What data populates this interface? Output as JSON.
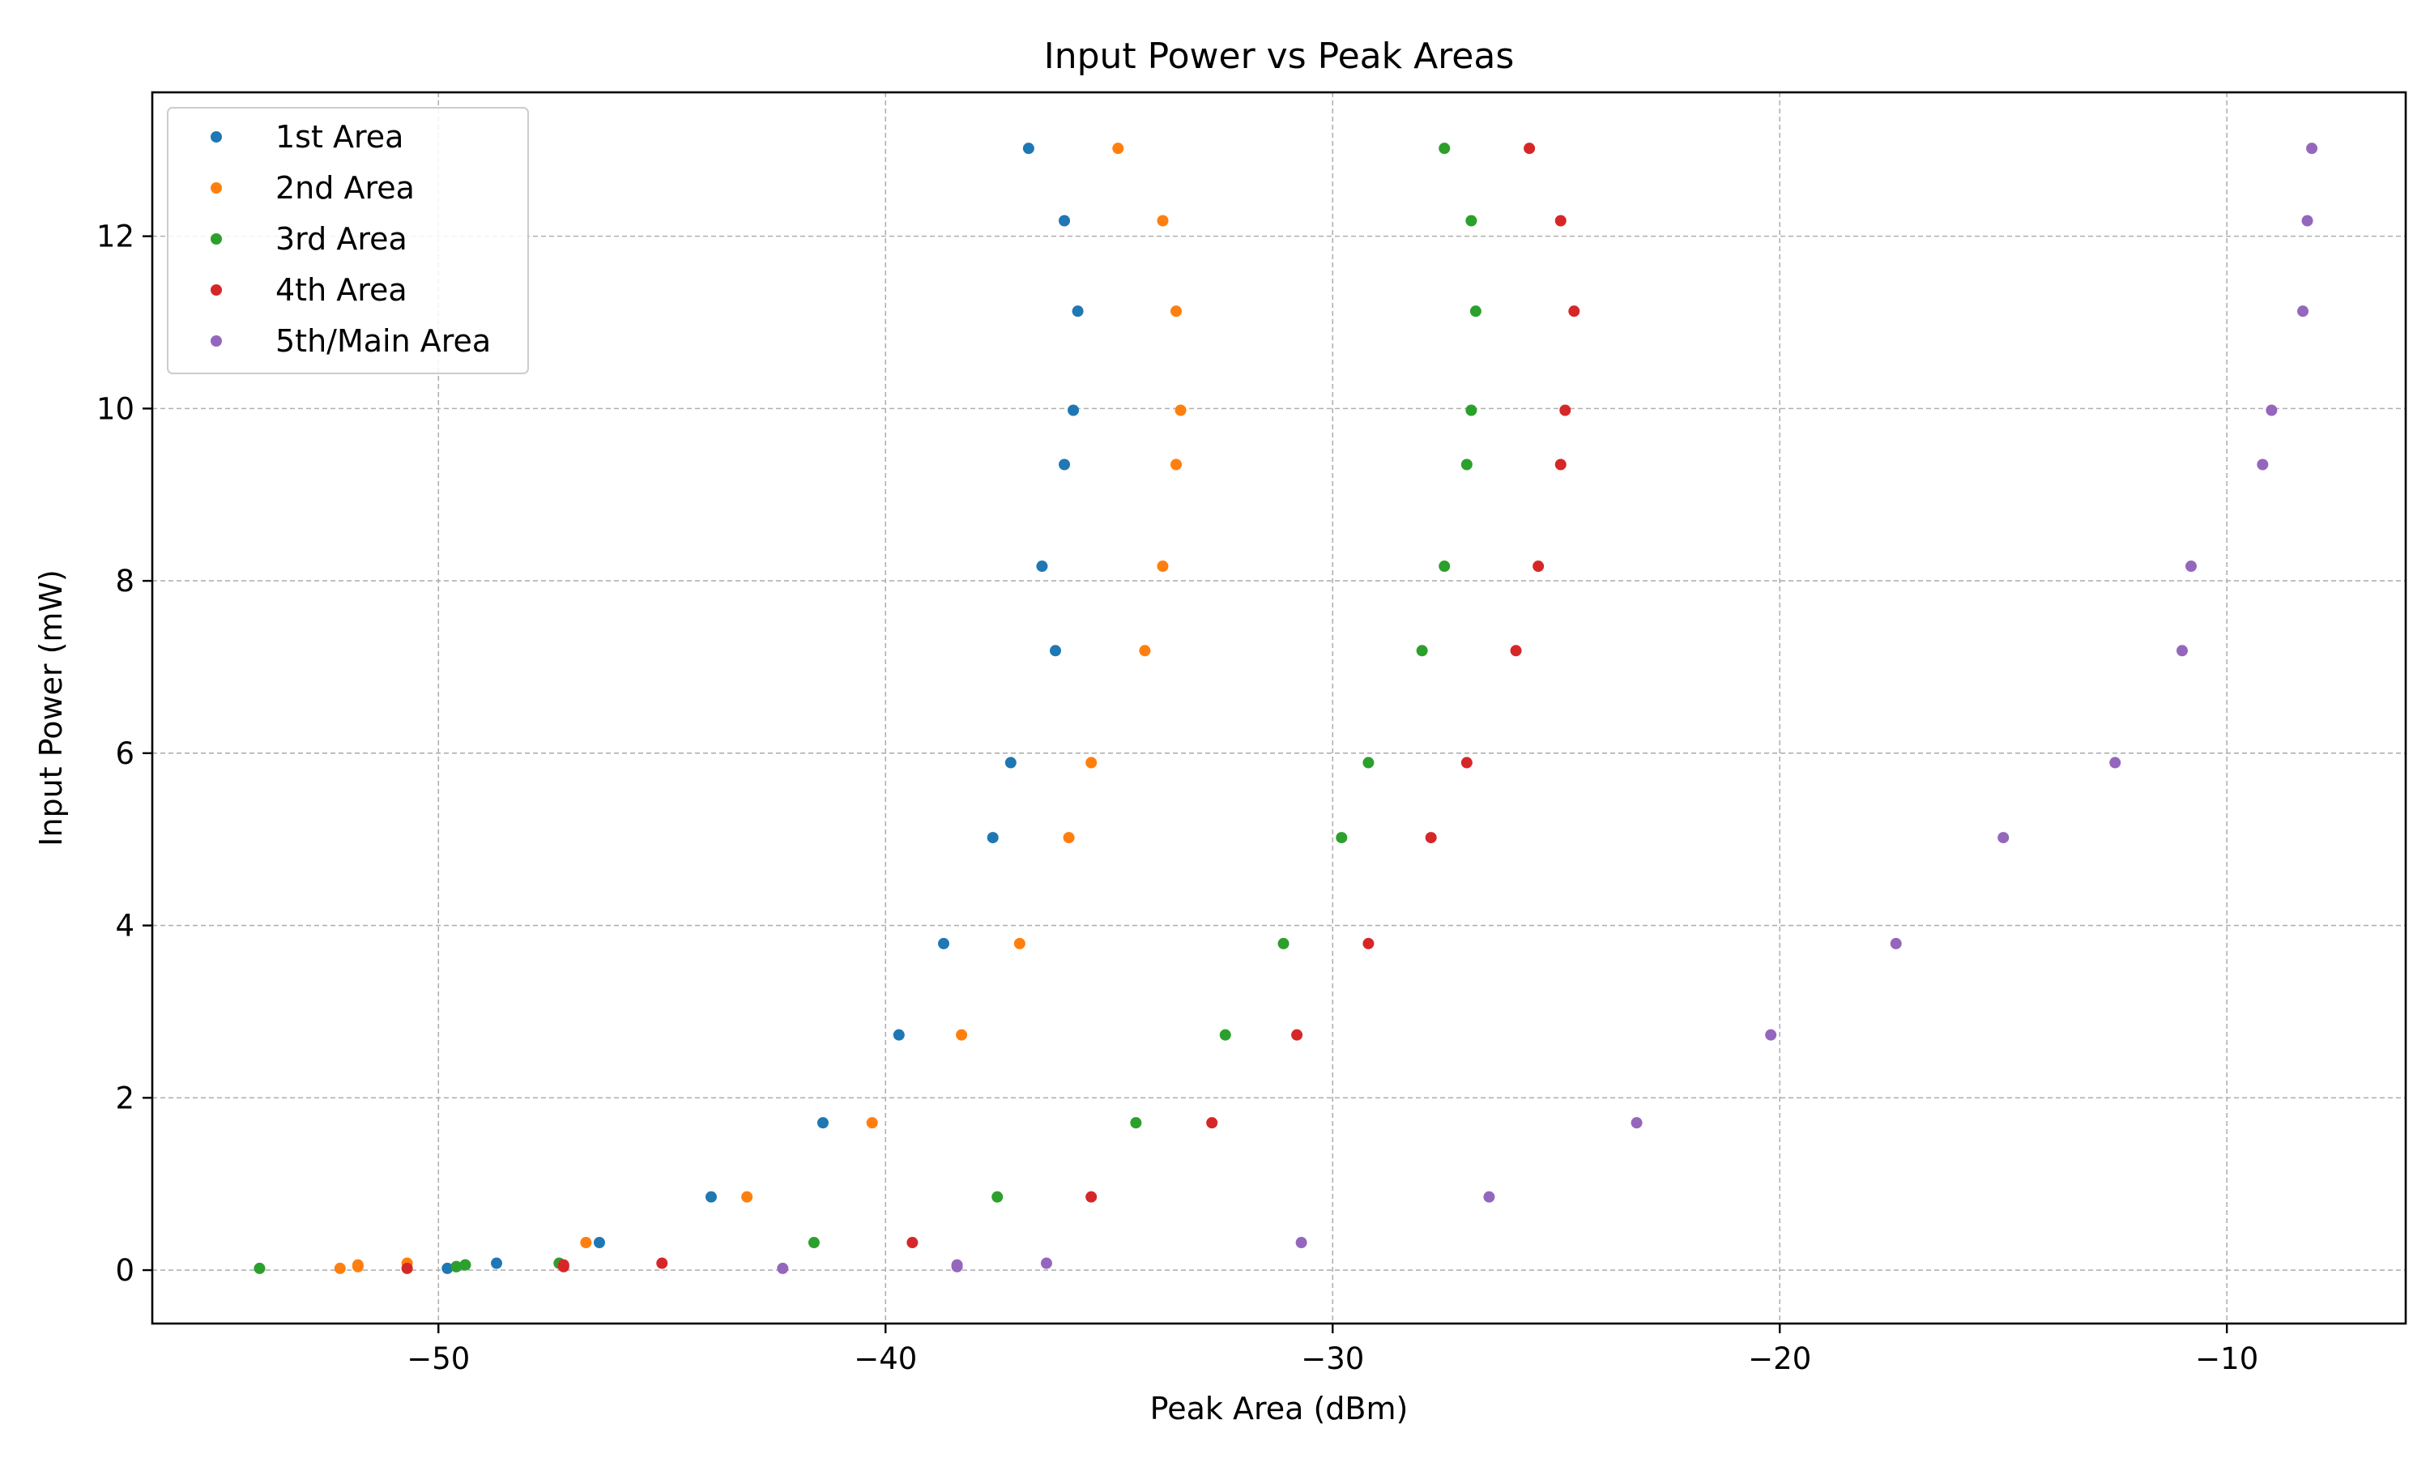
{
  "chart_data": {
    "type": "scatter",
    "title": "Input Power vs Peak Areas",
    "xlabel": "Peak Area (dBm)",
    "ylabel": "Input Power (mW)",
    "xlim": [
      -56.4,
      -6.0
    ],
    "ylim": [
      -0.62,
      13.67
    ],
    "x_ticks": [
      -50,
      -40,
      -30,
      -20,
      -10
    ],
    "x_tick_labels": [
      "−50",
      "−40",
      "−30",
      "−20",
      "−10"
    ],
    "y_ticks": [
      0,
      2,
      4,
      6,
      8,
      10,
      12
    ],
    "y_tick_labels": [
      "0",
      "2",
      "4",
      "6",
      "8",
      "10",
      "12"
    ],
    "grid": true,
    "legend_position": "top-left",
    "y_values": [
      0.02,
      0.04,
      0.06,
      0.08,
      0.32,
      0.85,
      1.71,
      2.73,
      3.79,
      5.02,
      5.89,
      7.19,
      8.17,
      9.35,
      9.98,
      11.13,
      12.18,
      13.02
    ],
    "series": [
      {
        "name": "1st Area",
        "color": "#1f77b4",
        "x": [
          -49.8,
          -49.6,
          -49.4,
          -48.7,
          -46.4,
          -43.9,
          -41.4,
          -39.7,
          -38.7,
          -37.6,
          -37.2,
          -36.2,
          -36.5,
          -36.0,
          -35.8,
          -35.7,
          -36.0,
          -36.8
        ]
      },
      {
        "name": "2nd Area",
        "color": "#ff7f0e",
        "x": [
          -52.2,
          -51.8,
          -51.8,
          -50.7,
          -46.7,
          -43.1,
          -40.3,
          -38.3,
          -37.0,
          -35.9,
          -35.4,
          -34.2,
          -33.8,
          -33.5,
          -33.4,
          -33.5,
          -33.8,
          -34.8
        ]
      },
      {
        "name": "3rd Area",
        "color": "#2ca02c",
        "x": [
          -54.0,
          -49.6,
          -49.4,
          -47.3,
          -41.6,
          -37.5,
          -34.4,
          -32.4,
          -31.1,
          -29.8,
          -29.2,
          -28.0,
          -27.5,
          -27.0,
          -26.9,
          -26.8,
          -26.9,
          -27.5
        ]
      },
      {
        "name": "4th Area",
        "color": "#d62728",
        "x": [
          -50.7,
          -47.2,
          -47.2,
          -45.0,
          -39.4,
          -35.4,
          -32.7,
          -30.8,
          -29.2,
          -27.8,
          -27.0,
          -25.9,
          -25.4,
          -24.9,
          -24.8,
          -24.6,
          -24.9,
          -25.6
        ]
      },
      {
        "name": "5th/Main Area",
        "color": "#9467bd",
        "x": [
          -42.3,
          -38.4,
          -38.4,
          -36.4,
          -30.7,
          -26.5,
          -23.2,
          -20.2,
          -17.4,
          -15.0,
          -12.5,
          -11.0,
          -10.8,
          -9.2,
          -9.0,
          -8.3,
          -8.2,
          -8.1
        ]
      }
    ]
  }
}
